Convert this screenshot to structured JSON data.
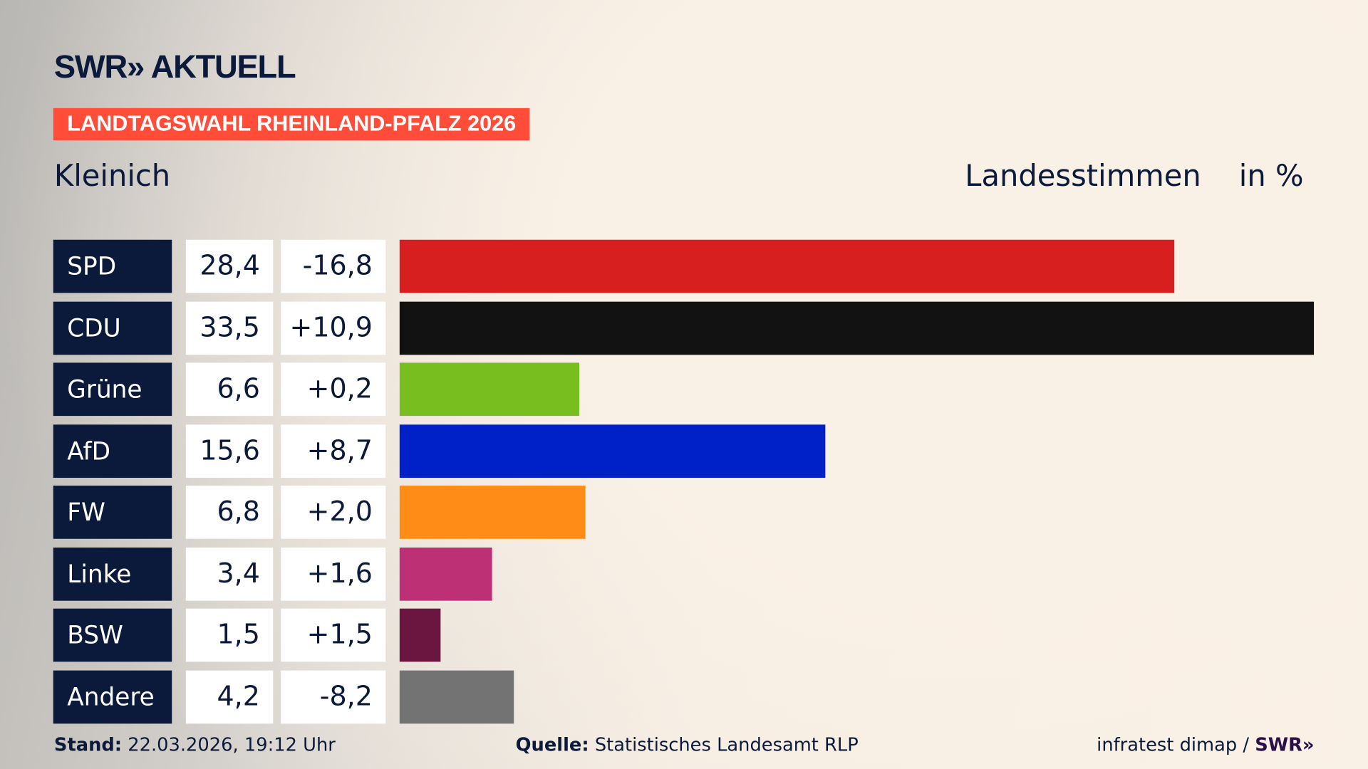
{
  "header": {
    "logo": "SWR» AKTUELL",
    "tag": "LANDTAGSWAHL RHEINLAND-PFALZ 2026",
    "place": "Kleinich",
    "measure": "Landesstimmen",
    "unit": "in %"
  },
  "chart_data": {
    "type": "bar",
    "orientation": "horizontal",
    "categories": [
      "SPD",
      "CDU",
      "Grüne",
      "AfD",
      "FW",
      "Linke",
      "BSW",
      "Andere"
    ],
    "values": [
      28.4,
      33.5,
      6.6,
      15.6,
      6.8,
      3.4,
      1.5,
      4.2
    ],
    "value_labels": [
      "28,4",
      "33,5",
      "6,6",
      "15,6",
      "6,8",
      "3,4",
      "1,5",
      "4,2"
    ],
    "diff_labels": [
      "-16,8",
      "+10,9",
      "+0,2",
      "+8,7",
      "+2,0",
      "+1,6",
      "+1,5",
      "-8,2"
    ],
    "diffs": [
      -16.8,
      10.9,
      0.2,
      8.7,
      2.0,
      1.6,
      1.5,
      -8.2
    ],
    "colors": [
      "#d71f20",
      "#121212",
      "#78be1e",
      "#0021c8",
      "#ff8c17",
      "#be3075",
      "#6a1640",
      "#737373"
    ],
    "xlim": [
      0,
      33.5
    ]
  },
  "footer": {
    "stand_label": "Stand:",
    "stand": "22.03.2026, 19:12 Uhr",
    "source_label": "Quelle:",
    "source": "Statistisches Landesamt RLP",
    "credit": "infratest dimap /",
    "credit_logo": "SWR»"
  }
}
